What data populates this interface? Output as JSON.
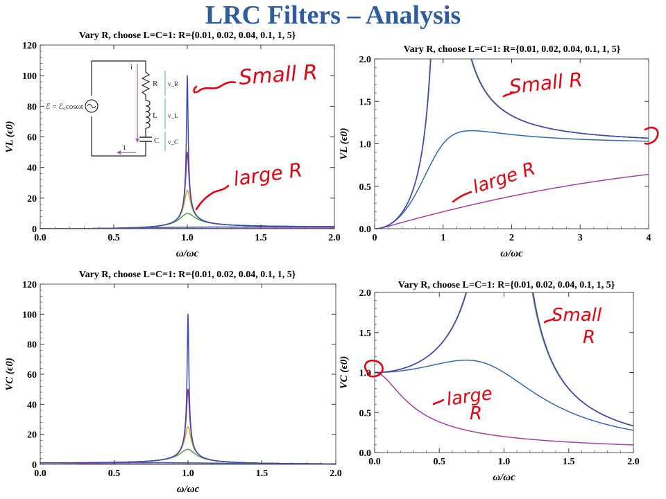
{
  "title": "LRC Filters – Analysis",
  "colors": {
    "title": "#2f5d9b",
    "ink": "#e0000f",
    "series": [
      "#3b4bb0",
      "#9b2f7f",
      "#d4a32a",
      "#4da04d",
      "#3366aa",
      "#a040a0"
    ]
  },
  "circuit": {
    "emf": "ℰ = ℰ₀cosωt",
    "current": "i",
    "R": "R",
    "L": "L",
    "C": "C",
    "vR": "v_R",
    "vL": "v_L",
    "vC": "v_C"
  },
  "annotations": {
    "small_r": "Small R",
    "large_r": "large R",
    "small_r_split": [
      "Small",
      "R"
    ],
    "large_r_split": [
      "large",
      "R"
    ]
  },
  "chart_data": [
    {
      "id": "p1",
      "type": "line",
      "title": "Vary R, choose L=C=1: R={0.01, 0.02, 0.04, 0.1, 1, 5}",
      "xlabel": "ω/ωc",
      "ylabel": "VL (ϵ0)",
      "xlim": [
        0,
        2
      ],
      "ylim": [
        0,
        120
      ],
      "xticks": [
        "0.0",
        "0.5",
        "1.0",
        "1.5",
        "2.0"
      ],
      "yticks": [
        "0",
        "20",
        "40",
        "60",
        "80",
        "100",
        "120"
      ],
      "quantity": "VL",
      "series": [
        {
          "R": 0.01,
          "color": "#3b4bb0"
        },
        {
          "R": 0.02,
          "color": "#9b2f7f"
        },
        {
          "R": 0.04,
          "color": "#d4a32a"
        },
        {
          "R": 0.1,
          "color": "#4da04d"
        },
        {
          "R": 1,
          "color": "#3366aa"
        },
        {
          "R": 5,
          "color": "#a040a0"
        }
      ]
    },
    {
      "id": "p2",
      "type": "line",
      "title": "Vary R, choose L=C=1: R={0.01, 0.02, 0.04, 0.1, 1, 5}",
      "xlabel": "ω/ωc",
      "ylabel": "VL (ϵ0)",
      "xlim": [
        0,
        4
      ],
      "ylim": [
        0,
        2
      ],
      "xticks": [
        "0",
        "1",
        "2",
        "3",
        "4"
      ],
      "yticks": [
        "0.0",
        "0.5",
        "1.0",
        "1.5",
        "2.0"
      ],
      "quantity": "VL",
      "series": [
        {
          "R": 0.01,
          "color": "#3b4bb0"
        },
        {
          "R": 0.02,
          "color": "#9b2f7f"
        },
        {
          "R": 0.04,
          "color": "#d4a32a"
        },
        {
          "R": 0.1,
          "color": "#4da04d"
        },
        {
          "R": 1,
          "color": "#3366aa"
        },
        {
          "R": 5,
          "color": "#a040a0"
        }
      ]
    },
    {
      "id": "p3",
      "type": "line",
      "title": "Vary R, choose L=C=1: R={0.01, 0.02, 0.04, 0.1, 1, 5}",
      "xlabel": "ω/ωc",
      "ylabel": "VC (ϵ0)",
      "xlim": [
        0,
        2
      ],
      "ylim": [
        0,
        120
      ],
      "xticks": [
        "0.0",
        "0.5",
        "1.0",
        "1.5",
        "2.0"
      ],
      "yticks": [
        "0",
        "20",
        "40",
        "60",
        "80",
        "100",
        "120"
      ],
      "quantity": "VC",
      "series": [
        {
          "R": 0.01,
          "color": "#3b4bb0"
        },
        {
          "R": 0.02,
          "color": "#9b2f7f"
        },
        {
          "R": 0.04,
          "color": "#d4a32a"
        },
        {
          "R": 0.1,
          "color": "#4da04d"
        },
        {
          "R": 1,
          "color": "#3366aa"
        },
        {
          "R": 5,
          "color": "#a040a0"
        }
      ]
    },
    {
      "id": "p4",
      "type": "line",
      "title": "Vary R, choose L=C=1: R={0.01, 0.02, 0.04, 0.1, 1, 5}",
      "xlabel": "ω/ωc",
      "ylabel": "VC (ϵ0)",
      "xlim": [
        0,
        2
      ],
      "ylim": [
        0,
        2
      ],
      "xticks": [
        "0.0",
        "0.5",
        "1.0",
        "1.5",
        "2.0"
      ],
      "yticks": [
        "0.0",
        "0.5",
        "1.0",
        "1.5",
        "2.0"
      ],
      "quantity": "VC",
      "series": [
        {
          "R": 0.01,
          "color": "#3b4bb0"
        },
        {
          "R": 0.02,
          "color": "#9b2f7f"
        },
        {
          "R": 0.04,
          "color": "#d4a32a"
        },
        {
          "R": 0.1,
          "color": "#4da04d"
        },
        {
          "R": 1,
          "color": "#3366aa"
        },
        {
          "R": 5,
          "color": "#a040a0"
        }
      ]
    }
  ]
}
